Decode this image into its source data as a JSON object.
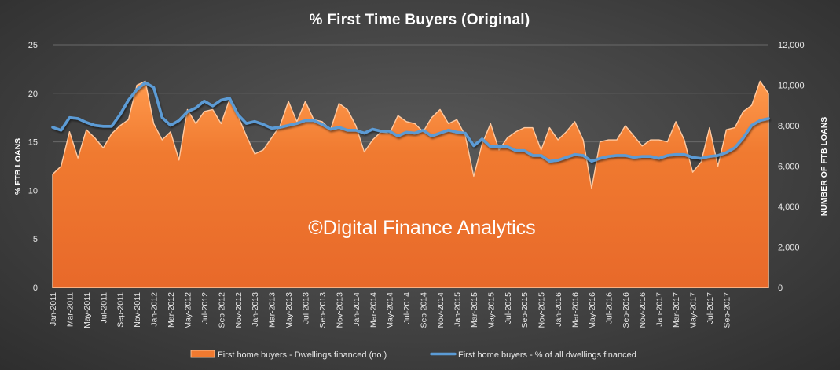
{
  "chart_data": {
    "type": "area+line",
    "title": "% First Time Buyers (Original)",
    "ylabel_left": "% FTB LOANS",
    "ylabel_right": "NUMBER OF FTB LOANS",
    "y_left_lim": [
      0,
      25
    ],
    "y_left_ticks": [
      "0",
      "5",
      "10",
      "15",
      "20",
      "25"
    ],
    "y_right_lim": [
      0,
      12000
    ],
    "y_right_ticks": [
      "0",
      "2,000",
      "4,000",
      "6,000",
      "8,000",
      "10,000",
      "12,000"
    ],
    "grid": true,
    "legend_position": "bottom",
    "watermark": "©Digital Finance Analytics",
    "x_tick_labels": [
      "Jan-2011",
      "Mar-2011",
      "May-2011",
      "Jul-2011",
      "Sep-2011",
      "Nov-2011",
      "Jan-2012",
      "Mar-2012",
      "May-2012",
      "Jul-2012",
      "Sep-2012",
      "Nov-2012",
      "Jan-2013",
      "Mar-2013",
      "May-2013",
      "Jul-2013",
      "Sep-2013",
      "Nov-2013",
      "Jan-2014",
      "Mar-2014",
      "May-2014",
      "Jul-2014",
      "Sep-2014",
      "Nov-2014",
      "Jan-2015",
      "Mar-2015",
      "May-2015",
      "Jul-2015",
      "Sep-2015",
      "Nov-2015",
      "Jan-2016",
      "Mar-2016",
      "May-2016",
      "Jul-2016",
      "Sep-2016",
      "Nov-2016",
      "Jan-2017",
      "Mar-2017",
      "May-2017",
      "Jul-2017",
      "Sep-2017"
    ],
    "series": [
      {
        "name": "First home buyers - Dwellings financed (no.)",
        "axis": "right",
        "kind": "area",
        "color": "#f07a30",
        "values": [
          5600,
          6000,
          7700,
          6400,
          7800,
          7400,
          6900,
          7600,
          8000,
          8300,
          10000,
          10200,
          8100,
          7300,
          7700,
          6300,
          8800,
          8100,
          8700,
          8800,
          8100,
          9300,
          8500,
          7500,
          6600,
          6800,
          7400,
          8000,
          9200,
          8200,
          9200,
          8300,
          8200,
          7800,
          9100,
          8800,
          8000,
          6700,
          7300,
          7700,
          7600,
          8500,
          8200,
          8100,
          7700,
          8400,
          8800,
          8100,
          8300,
          7500,
          5500,
          7100,
          8100,
          6800,
          7400,
          7700,
          7900,
          7900,
          6800,
          7900,
          7300,
          7700,
          8200,
          7300,
          4900,
          7200,
          7300,
          7300,
          8000,
          7500,
          7000,
          7300,
          7300,
          7200,
          8200,
          7300,
          5700,
          6200,
          7900,
          6000,
          7800,
          7900,
          8700,
          9000,
          10200,
          9600
        ]
      },
      {
        "name": "First home buyers - % of all dwellings financed",
        "axis": "left",
        "kind": "line",
        "color": "#5b9bd5",
        "values": [
          16.5,
          16.2,
          17.5,
          17.4,
          17.0,
          16.7,
          16.6,
          16.6,
          17.8,
          19.3,
          20.4,
          21.1,
          20.6,
          17.5,
          16.7,
          17.2,
          18.1,
          18.5,
          19.2,
          18.7,
          19.3,
          19.5,
          17.8,
          16.9,
          17.1,
          16.8,
          16.4,
          16.5,
          16.7,
          16.9,
          17.2,
          17.2,
          16.8,
          16.3,
          16.5,
          16.2,
          16.2,
          15.9,
          16.3,
          16.1,
          16.1,
          15.6,
          16.0,
          15.9,
          16.2,
          15.6,
          15.9,
          16.2,
          16.0,
          15.9,
          14.6,
          15.3,
          14.5,
          14.5,
          14.5,
          14.1,
          14.1,
          13.6,
          13.6,
          13.0,
          13.1,
          13.4,
          13.7,
          13.6,
          13.0,
          13.3,
          13.5,
          13.6,
          13.6,
          13.4,
          13.5,
          13.5,
          13.3,
          13.6,
          13.7,
          13.7,
          13.4,
          13.3,
          13.5,
          13.6,
          13.9,
          14.4,
          15.4,
          16.7,
          17.2,
          17.4
        ]
      }
    ]
  }
}
